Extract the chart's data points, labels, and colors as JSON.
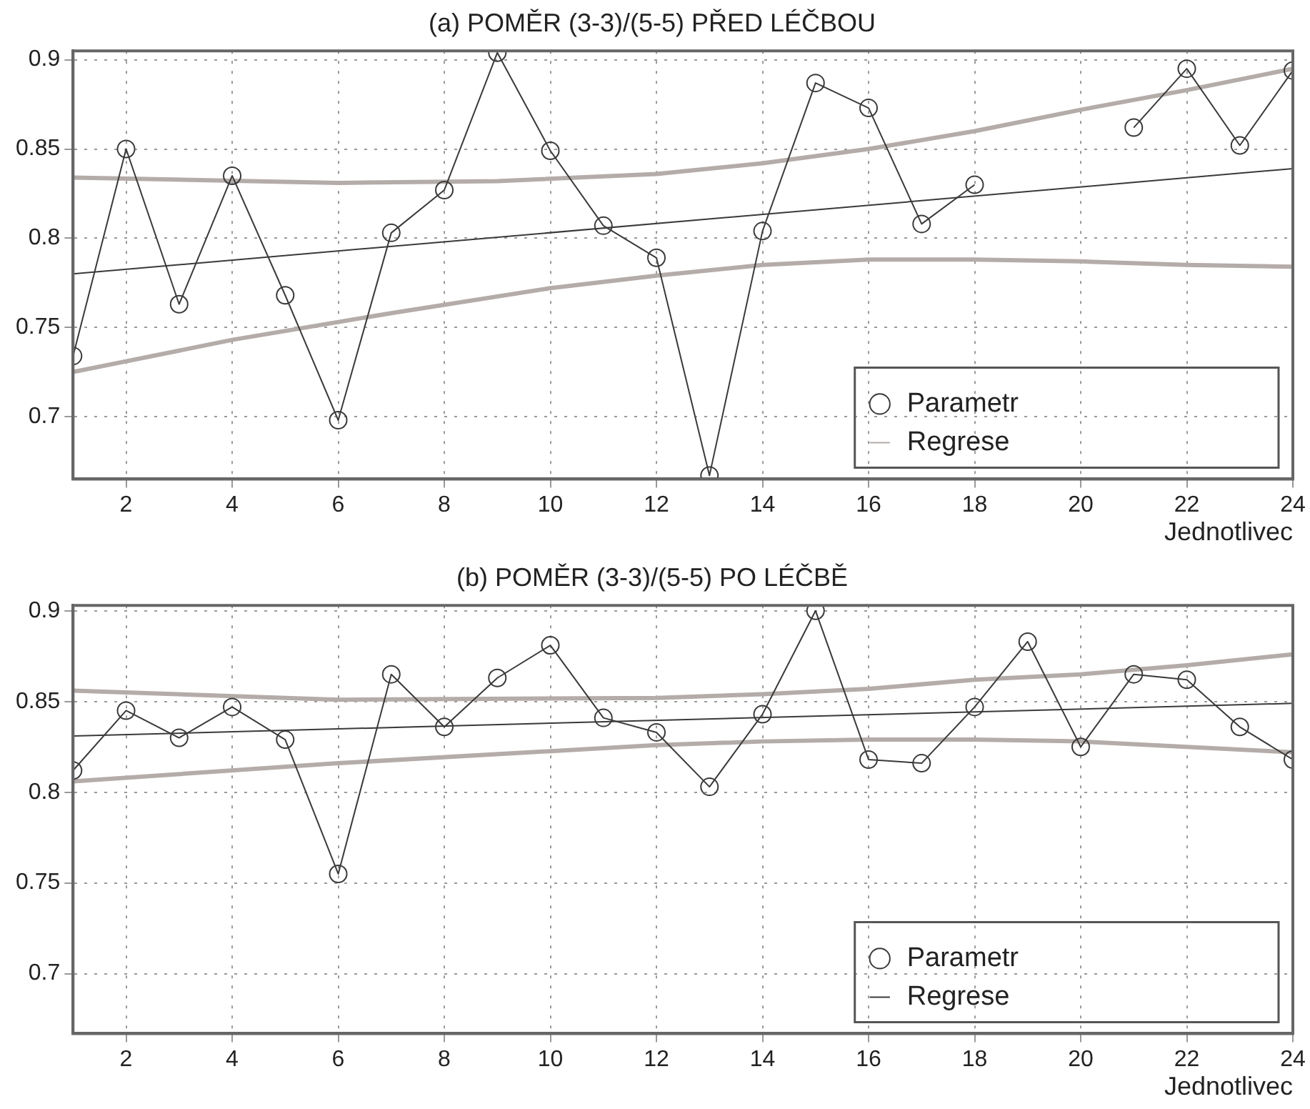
{
  "chart_data": [
    {
      "type": "line",
      "title": "(a) POMĚR (3-3)/(5-5) PŘED LÉČBOU",
      "xlabel": "Jednotlivec",
      "xlim": [
        1,
        24
      ],
      "xticks": [
        2,
        4,
        6,
        8,
        10,
        12,
        14,
        16,
        18,
        20,
        22,
        24
      ],
      "ylim": [
        0.665,
        0.905
      ],
      "yticks": [
        0.7,
        0.75,
        0.8,
        0.85,
        0.9
      ],
      "grid": true,
      "legend": "bottom right",
      "x": [
        1,
        2,
        3,
        4,
        5,
        6,
        7,
        8,
        9,
        10,
        11,
        12,
        13,
        14,
        15,
        16,
        17,
        18,
        19,
        20,
        21,
        22,
        23,
        24
      ],
      "series": [
        {
          "name": "Parametr",
          "color": "#3a3a3a",
          "marker": "circle",
          "values": [
            0.734,
            0.85,
            0.763,
            0.835,
            0.768,
            0.698,
            0.803,
            0.827,
            0.904,
            0.849,
            0.807,
            0.789,
            0.667,
            0.804,
            0.887,
            0.873,
            0.808,
            0.83,
            null,
            null,
            0.862,
            0.895,
            0.852,
            0.894
          ]
        },
        {
          "name": "Regrese",
          "color": "#b4aca8",
          "marker": "none",
          "x": [
            1,
            6,
            9,
            12,
            14,
            16,
            18,
            20,
            22,
            24
          ],
          "values": [
            0.834,
            0.831,
            0.832,
            0.836,
            0.842,
            0.85,
            0.86,
            0.872,
            0.883,
            0.895
          ]
        },
        {
          "color": "#b4aca8",
          "marker": "none",
          "x": [
            1,
            4,
            7,
            10,
            12,
            14,
            16,
            18,
            20,
            22,
            24
          ],
          "values": [
            0.725,
            0.743,
            0.758,
            0.772,
            0.779,
            0.785,
            0.788,
            0.788,
            0.787,
            0.785,
            0.784
          ]
        },
        {
          "color": "#3a3a3a",
          "marker": "none",
          "x": [
            1,
            24
          ],
          "values": [
            0.78,
            0.839
          ]
        }
      ]
    },
    {
      "type": "line",
      "title": "(b) POMĚR (3-3)/(5-5) PO LÉČBĚ",
      "xlabel": "Jednotlivec",
      "xlim": [
        1,
        24
      ],
      "xticks": [
        2,
        4,
        6,
        8,
        10,
        12,
        14,
        16,
        18,
        20,
        22,
        24
      ],
      "ylim": [
        0.667,
        0.903
      ],
      "yticks": [
        0.7,
        0.75,
        0.8,
        0.85,
        0.9
      ],
      "grid": true,
      "legend": "bottom right",
      "x": [
        1,
        2,
        3,
        4,
        5,
        6,
        7,
        8,
        9,
        10,
        11,
        12,
        13,
        14,
        15,
        16,
        17,
        18,
        19,
        20,
        21,
        22,
        23,
        24
      ],
      "series": [
        {
          "name": "Parametr",
          "color": "#3a3a3a",
          "marker": "circle",
          "values": [
            0.812,
            0.845,
            0.83,
            0.847,
            0.829,
            0.755,
            0.865,
            0.836,
            0.863,
            0.881,
            0.841,
            0.833,
            0.803,
            0.843,
            0.9,
            0.818,
            0.816,
            0.847,
            0.883,
            0.825,
            0.865,
            0.862,
            0.836,
            0.818
          ]
        },
        {
          "name": "Regrese",
          "color": "#3a3a3a",
          "marker": "none",
          "x": [
            1,
            24
          ],
          "values": [
            0.831,
            0.849
          ]
        },
        {
          "color": "#b4aca8",
          "marker": "none",
          "x": [
            1,
            6,
            12,
            14,
            16,
            18,
            20,
            22,
            24
          ],
          "values": [
            0.856,
            0.851,
            0.852,
            0.854,
            0.857,
            0.862,
            0.865,
            0.87,
            0.876
          ]
        },
        {
          "color": "#b4aca8",
          "marker": "none",
          "x": [
            1,
            6,
            12,
            14,
            16,
            18,
            20,
            22,
            24
          ],
          "values": [
            0.806,
            0.816,
            0.826,
            0.828,
            0.829,
            0.829,
            0.828,
            0.825,
            0.822
          ]
        }
      ]
    }
  ]
}
